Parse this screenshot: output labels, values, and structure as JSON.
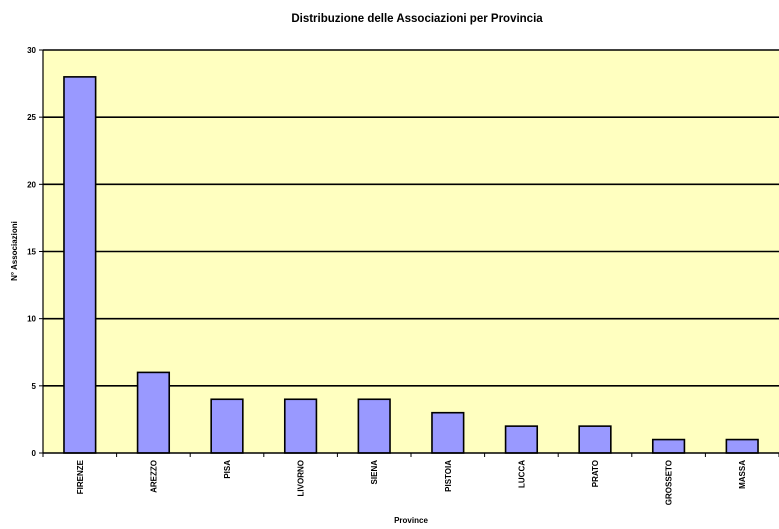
{
  "chart_data": {
    "type": "bar",
    "title": "Distribuzione delle Associazioni per Provincia",
    "xlabel": "Province",
    "ylabel": "N° Associazioni",
    "categories": [
      "FIRENZE",
      "AREZZO",
      "PISA",
      "LIVORNO",
      "SIENA",
      "PISTOIA",
      "LUCCA",
      "PRATO",
      "GROSSETO",
      "MASSA"
    ],
    "values": [
      28,
      6,
      4,
      4,
      4,
      3,
      2,
      2,
      1,
      1
    ],
    "ylim": [
      0,
      30
    ],
    "yticks": [
      0,
      5,
      10,
      15,
      20,
      25,
      30
    ],
    "grid": true,
    "legend": "none",
    "colors": {
      "plot_background": "#ffffc0",
      "bar_fill": "#9999ff",
      "bar_stroke": "#000000",
      "gridline": "#000000"
    }
  }
}
